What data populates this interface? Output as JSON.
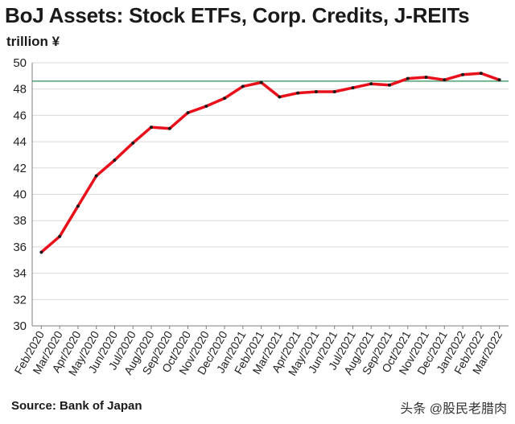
{
  "header": {
    "title": "BoJ Assets: Stock ETFs, Corp. Credits, J-REITs",
    "unit": "trillion ¥"
  },
  "footer": {
    "source": "Source: Bank of Japan",
    "watermark": "头条 @股民老腊肉"
  },
  "chart_data": {
    "type": "line",
    "title": "BoJ Assets: Stock ETFs, Corp. Credits, J-REITs",
    "ylabel": "trillion ¥",
    "xlabel": "",
    "ylim": [
      30,
      50
    ],
    "yticks": [
      30,
      32,
      34,
      36,
      38,
      40,
      42,
      44,
      46,
      48,
      50
    ],
    "grid": true,
    "reference_line": 48.6,
    "categories": [
      "Feb/2020",
      "Mar/2020",
      "Apr/2020",
      "May/2020",
      "Jun/2020",
      "Jul/2020",
      "Aug/2020",
      "Sep/2020",
      "Oct/2020",
      "Nov/2020",
      "Dec/2020",
      "Jan/2021",
      "Feb/2021",
      "Mar/2021",
      "Apr/2021",
      "May/2021",
      "Jun/2021",
      "Jul/2021",
      "Aug/2021",
      "Sep/2021",
      "Oct/2021",
      "Nov/2021",
      "Dec/2021",
      "Jan/2022",
      "Feb/2022",
      "Mar/2022"
    ],
    "series": [
      {
        "color": "#e8101a",
        "values": [
          35.6,
          36.8,
          39.1,
          41.4,
          42.6,
          43.9,
          45.1,
          45.0,
          46.2,
          46.7,
          47.3,
          48.2,
          48.5,
          47.4,
          47.7,
          47.8,
          47.8,
          48.1,
          48.4,
          48.3,
          48.8,
          48.9,
          48.7,
          49.1,
          49.2,
          48.7
        ]
      }
    ],
    "colors": {
      "line": "#e8101a",
      "marker": "#1a1a1a",
      "reference": "#2e8b57",
      "grid": "#d9d9d9",
      "axis": "#7f7f7f"
    }
  }
}
